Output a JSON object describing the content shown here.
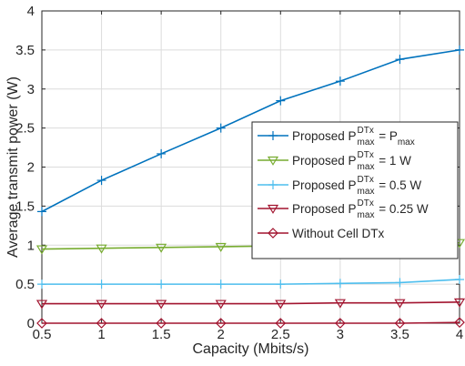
{
  "chart_data": {
    "type": "line",
    "title": "",
    "xlabel": "Capacity (Mbits/s)",
    "ylabel": "Average transmit power (W)",
    "xlim": [
      0.5,
      4
    ],
    "ylim": [
      0,
      4
    ],
    "xticks": [
      "0.5",
      "1",
      "1.5",
      "2",
      "2.5",
      "3",
      "3.5",
      "4"
    ],
    "yticks": [
      "0",
      "0.5",
      "1",
      "1.5",
      "2",
      "2.5",
      "3",
      "3.5",
      "4"
    ],
    "grid": true,
    "legend_position": "right",
    "x": [
      0.5,
      1,
      1.5,
      2,
      2.5,
      3,
      3.5,
      4
    ],
    "series": [
      {
        "name_parts": {
          "prefix": "Proposed P",
          "sup": "DTx",
          "sub": "max",
          "suffix": " = P",
          "suffix_sub": "max"
        },
        "color": "#0072BD",
        "marker": "plus",
        "values": [
          1.43,
          1.83,
          2.17,
          2.5,
          2.85,
          3.1,
          3.38,
          3.5
        ]
      },
      {
        "name_parts": {
          "prefix": "Proposed P",
          "sup": "DTx",
          "sub": "max",
          "suffix": " = 1 W",
          "suffix_sub": ""
        },
        "color": "#77AC30",
        "marker": "triangle-down",
        "values": [
          0.95,
          0.96,
          0.97,
          0.98,
          0.99,
          1.0,
          1.01,
          1.03
        ]
      },
      {
        "name_parts": {
          "prefix": "Proposed P",
          "sup": "DTx",
          "sub": "max",
          "suffix": " = 0.5 W",
          "suffix_sub": ""
        },
        "color": "#4DBEEE",
        "marker": "plus",
        "values": [
          0.5,
          0.5,
          0.5,
          0.5,
          0.5,
          0.51,
          0.52,
          0.56
        ]
      },
      {
        "name_parts": {
          "prefix": "Proposed P",
          "sup": "DTx",
          "sub": "max",
          "suffix": " = 0.25 W",
          "suffix_sub": ""
        },
        "color": "#A2142F",
        "marker": "triangle-down",
        "values": [
          0.25,
          0.25,
          0.25,
          0.25,
          0.25,
          0.26,
          0.26,
          0.27
        ]
      },
      {
        "name_parts": {
          "prefix": "Without Cell DTx",
          "sup": "",
          "sub": "",
          "suffix": "",
          "suffix_sub": ""
        },
        "color": "#A2142F",
        "marker": "diamond",
        "values": [
          0.0,
          0.0,
          0.0,
          0.0,
          0.0,
          0.0,
          0.0,
          0.01
        ]
      }
    ]
  }
}
